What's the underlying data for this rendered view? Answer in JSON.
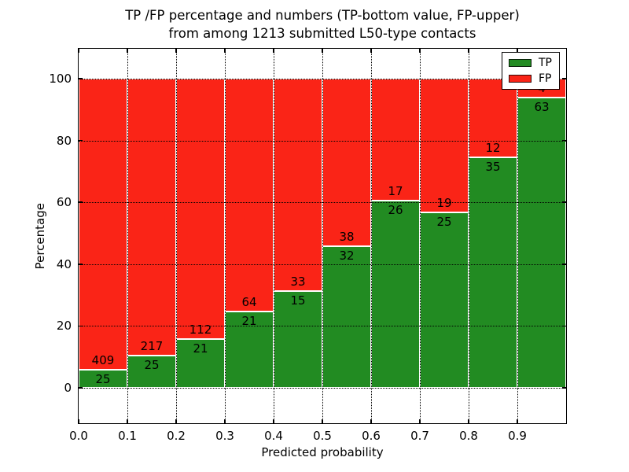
{
  "chart_data": {
    "type": "bar",
    "stacked": true,
    "title_lines": [
      "TP /FP percentage and numbers (TP-bottom value, FP-upper)",
      "from among 1213 submitted L50-type contacts"
    ],
    "title": "TP /FP percentage and numbers (TP-bottom value, FP-upper) from among 1213 submitted L50-type contacts",
    "xlabel": "Predicted probability",
    "ylabel": "Percentage",
    "total_contacts": 1213,
    "categories": [
      "0.0-0.1",
      "0.1-0.2",
      "0.2-0.3",
      "0.3-0.4",
      "0.4-0.5",
      "0.5-0.6",
      "0.6-0.7",
      "0.7-0.8",
      "0.8-0.9",
      "0.9-1.0"
    ],
    "series": [
      {
        "name": "TP",
        "color": "#228b22",
        "values": [
          25,
          25,
          21,
          21,
          15,
          32,
          26,
          25,
          35,
          63
        ]
      },
      {
        "name": "FP",
        "color": "#fa2417",
        "values": [
          409,
          217,
          112,
          64,
          33,
          38,
          17,
          19,
          12,
          4
        ]
      }
    ],
    "bar_total_percent": 100,
    "x_tick_labels": [
      "0.0",
      "0.1",
      "0.2",
      "0.3",
      "0.4",
      "0.5",
      "0.6",
      "0.7",
      "0.8",
      "0.9"
    ],
    "x_tick_values": [
      0.0,
      0.1,
      0.2,
      0.3,
      0.4,
      0.5,
      0.6,
      0.7,
      0.8,
      0.9
    ],
    "y_tick_labels": [
      "0",
      "20",
      "40",
      "60",
      "80",
      "100"
    ],
    "y_tick_values": [
      0,
      20,
      40,
      60,
      80,
      100
    ],
    "xlim": [
      0.0,
      1.0
    ],
    "ylim": [
      -11.5,
      109.7
    ],
    "grid": true,
    "grid_style": "dotted",
    "bar_edge_color": "#ffffff",
    "label_color": "#000000",
    "legend": {
      "position": "upper right",
      "entries": [
        "TP",
        "FP"
      ]
    }
  }
}
